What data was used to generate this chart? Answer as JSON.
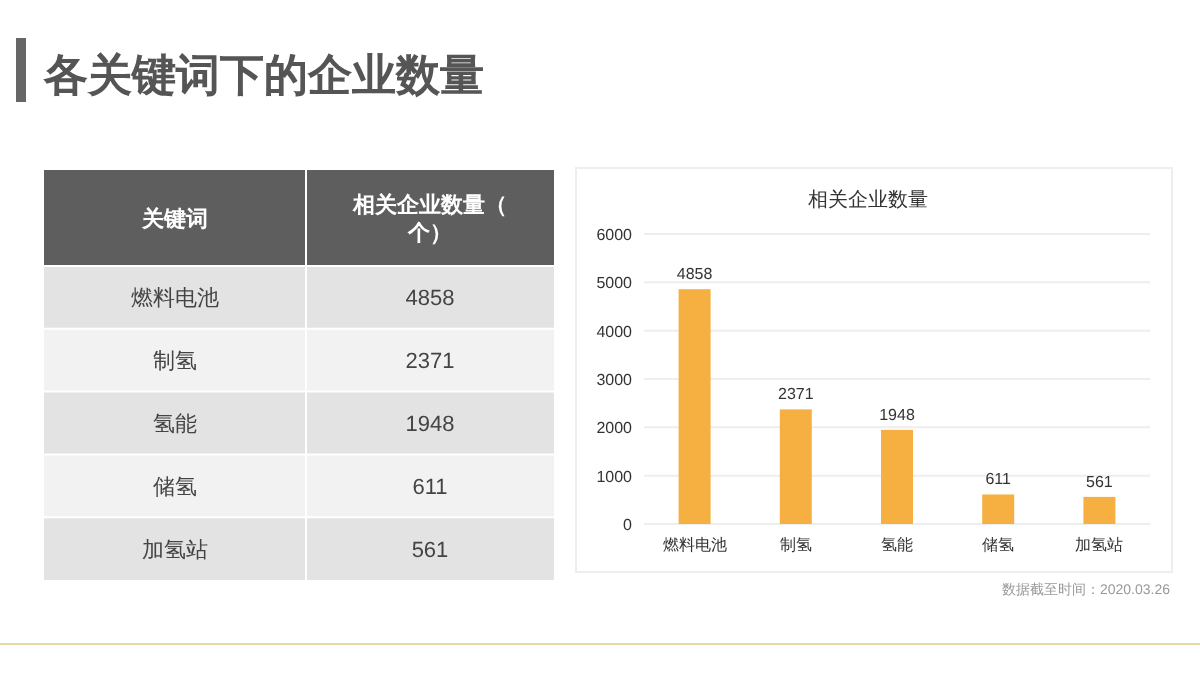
{
  "chart_data": [
    {
      "type": "other",
      "title": "各关键词下的企业数量",
      "xlabel": "关键词",
      "ylabel": "相关企业数量（个）",
      "categories": [
        "燃料电池",
        "制氢",
        "氢能",
        "储氢",
        "加氢站"
      ],
      "values": [
        4858,
        2371,
        1948,
        611,
        561
      ],
      "value_labels": [
        "4858",
        "2371",
        "1948",
        "611",
        "561"
      ]
    },
    {
      "type": "bar",
      "title": "相关企业数量",
      "categories": [
        "燃料电池",
        "制氢",
        "氢能",
        "储氢",
        "加氢站"
      ],
      "values": [
        4858,
        2371,
        1948,
        611,
        561
      ],
      "color": "#f5b041",
      "ylim": [
        0,
        6000
      ],
      "yticks": [
        0,
        1000,
        2000,
        3000,
        4000,
        5000,
        6000
      ],
      "grid": "y",
      "data_labels": true,
      "annotations": [
        "数据截至时间：2020.03.26"
      ]
    }
  ]
}
